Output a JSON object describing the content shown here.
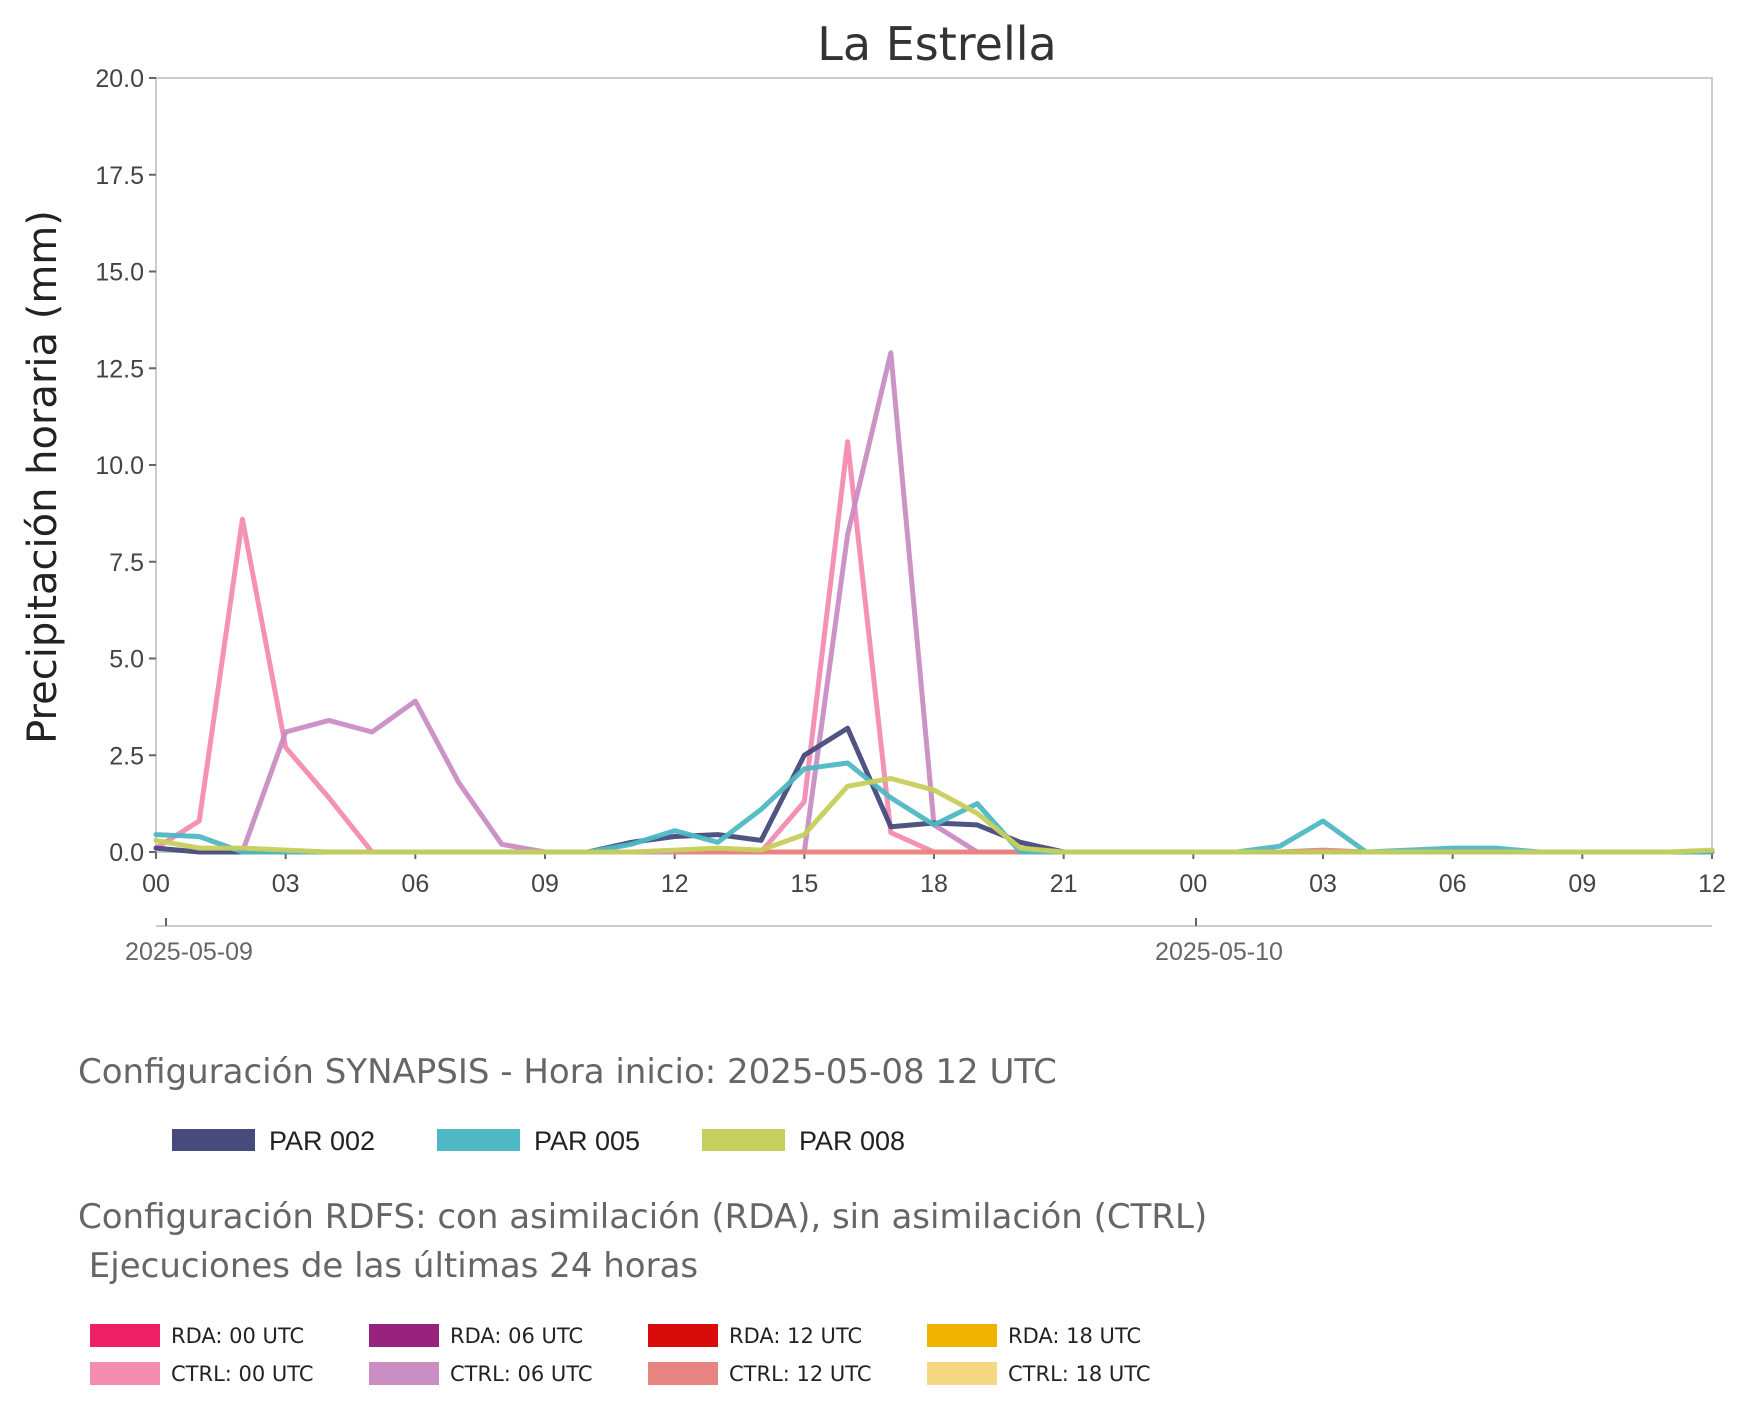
{
  "chart_data": {
    "type": "line",
    "title": "La Estrella",
    "ylabel": "Precipitación horaria (mm)",
    "xlabel": "",
    "ylim": [
      0,
      20
    ],
    "yticks": [
      "0.0",
      "2.5",
      "5.0",
      "7.5",
      "10.0",
      "12.5",
      "15.0",
      "17.5",
      "20.0"
    ],
    "xlim_hours": [
      0,
      36
    ],
    "xticks": [
      "00",
      "03",
      "06",
      "09",
      "12",
      "15",
      "18",
      "21",
      "00",
      "03",
      "06",
      "09",
      "12"
    ],
    "date_labels": [
      "2025-05-09",
      "2025-05-10"
    ],
    "grid": false,
    "series": [
      {
        "name": "CTRL: 00 UTC",
        "color": "#f48bb0",
        "x": [
          0,
          1,
          2,
          3,
          4,
          5,
          6,
          7,
          8,
          9,
          10,
          11,
          12,
          13,
          14,
          15,
          16,
          17,
          18,
          19,
          20,
          21,
          22,
          23,
          24
        ],
        "y": [
          0.1,
          0.8,
          8.6,
          2.7,
          1.4,
          0,
          0,
          0,
          0,
          0,
          0,
          0,
          0,
          0,
          0,
          1.3,
          10.6,
          0.5,
          0,
          0,
          0,
          0,
          0,
          0,
          0
        ]
      },
      {
        "name": "CTRL: 06 UTC",
        "color": "#c98dc4",
        "x": [
          2,
          3,
          4,
          5,
          6,
          7,
          8,
          9,
          10,
          11,
          12,
          13,
          14,
          15,
          16,
          17,
          18,
          19,
          20,
          21,
          22,
          23,
          24,
          25,
          26,
          27,
          28,
          29,
          30
        ],
        "y": [
          0,
          3.1,
          3.4,
          3.1,
          3.9,
          1.8,
          0.2,
          0,
          0,
          0,
          0,
          0,
          0,
          0,
          8.2,
          12.9,
          0.7,
          0,
          0,
          0,
          0,
          0,
          0,
          0,
          0,
          0,
          0,
          0,
          0
        ]
      },
      {
        "name": "CTRL: 12 UTC",
        "color": "#e8847f",
        "x": [
          12,
          13,
          14,
          15,
          16,
          17,
          18,
          19,
          20,
          21,
          22,
          23,
          24,
          25,
          26,
          27,
          28,
          29,
          30,
          31,
          32,
          33,
          34,
          35,
          36
        ],
        "y": [
          0,
          0,
          0,
          0,
          0,
          0,
          0,
          0,
          0,
          0,
          0,
          0,
          0,
          0,
          0,
          0.05,
          0,
          0,
          0,
          0,
          0,
          0,
          0,
          0,
          0
        ]
      },
      {
        "name": "PAR 002",
        "color": "#474b7c",
        "x": [
          0,
          1,
          2,
          3,
          4,
          5,
          6,
          7,
          8,
          9,
          10,
          11,
          12,
          13,
          14,
          15,
          16,
          17,
          18,
          19,
          20,
          21,
          22,
          23,
          24,
          25,
          26,
          27,
          28,
          29,
          30,
          31,
          32,
          33,
          34,
          35,
          36
        ],
        "y": [
          0.1,
          0,
          0,
          0,
          0,
          0,
          0,
          0,
          0,
          0,
          0,
          0.25,
          0.4,
          0.45,
          0.3,
          2.5,
          3.2,
          0.65,
          0.75,
          0.7,
          0.25,
          0,
          0,
          0,
          0,
          0,
          0,
          0,
          0,
          0,
          0,
          0,
          0,
          0,
          0,
          0,
          0
        ]
      },
      {
        "name": "PAR 005",
        "color": "#4eb8c4",
        "x": [
          0,
          1,
          2,
          3,
          4,
          5,
          6,
          7,
          8,
          9,
          10,
          11,
          12,
          13,
          14,
          15,
          16,
          17,
          18,
          19,
          20,
          21,
          22,
          23,
          24,
          25,
          26,
          27,
          28,
          29,
          30,
          31,
          32,
          33,
          34,
          35,
          36
        ],
        "y": [
          0.45,
          0.4,
          0,
          0,
          0,
          0,
          0,
          0,
          0,
          0,
          0,
          0.2,
          0.55,
          0.25,
          1.1,
          2.15,
          2.3,
          1.4,
          0.7,
          1.25,
          0,
          0,
          0,
          0,
          0,
          0,
          0.15,
          0.8,
          0,
          0.05,
          0.1,
          0.1,
          0,
          0,
          0,
          0,
          0
        ]
      },
      {
        "name": "PAR 008",
        "color": "#c6cf5c",
        "x": [
          0,
          1,
          2,
          3,
          4,
          5,
          6,
          7,
          8,
          9,
          10,
          11,
          12,
          13,
          14,
          15,
          16,
          17,
          18,
          19,
          20,
          21,
          22,
          23,
          24,
          25,
          26,
          27,
          28,
          29,
          30,
          31,
          32,
          33,
          34,
          35,
          36
        ],
        "y": [
          0.3,
          0.1,
          0.1,
          0.05,
          0,
          0,
          0,
          0,
          0,
          0,
          0,
          0,
          0.05,
          0.1,
          0.05,
          0.45,
          1.7,
          1.9,
          1.6,
          1.0,
          0.1,
          0,
          0,
          0,
          0,
          0,
          0,
          0,
          0,
          0,
          0,
          0,
          0,
          0,
          0,
          0,
          0.05
        ]
      }
    ]
  },
  "synapsis": {
    "title": "Configuración SYNAPSIS - Hora inicio: 2025-05-08 12 UTC",
    "items": [
      {
        "label": "PAR 002",
        "color": "#474b7c"
      },
      {
        "label": "PAR 005",
        "color": "#4eb8c4"
      },
      {
        "label": "PAR 008",
        "color": "#c6cf5c"
      }
    ]
  },
  "rdfs": {
    "title_line1": "Configuración RDFS: con asimilación (RDA), sin asimilación (CTRL)",
    "title_line2": " Ejecuciones de las últimas 24 horas",
    "items": [
      {
        "label": "RDA: 00 UTC",
        "color": "#ee1f64"
      },
      {
        "label": "CTRL: 00 UTC",
        "color": "#f48bb0"
      },
      {
        "label": "RDA: 06 UTC",
        "color": "#98237c"
      },
      {
        "label": "CTRL: 06 UTC",
        "color": "#c98dc4"
      },
      {
        "label": "RDA: 12 UTC",
        "color": "#d80b0b"
      },
      {
        "label": "CTRL: 12 UTC",
        "color": "#e8847f"
      },
      {
        "label": "RDA: 18 UTC",
        "color": "#f0b400"
      },
      {
        "label": "CTRL: 18 UTC",
        "color": "#f6d784"
      }
    ]
  }
}
